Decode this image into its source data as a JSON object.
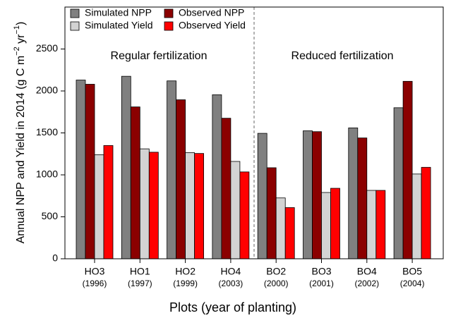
{
  "chart_data": {
    "type": "bar",
    "categories": [
      "HO3",
      "HO1",
      "HO2",
      "HO4",
      "BO2",
      "BO3",
      "BO4",
      "BO5"
    ],
    "years": [
      "(1996)",
      "(1997)",
      "(1999)",
      "(2003)",
      "(2000)",
      "(2001)",
      "(2002)",
      "(2004)"
    ],
    "series": [
      {
        "name": "Simulated NPP",
        "color": "#808080",
        "values": [
          2130,
          2175,
          2120,
          1955,
          1495,
          1525,
          1560,
          1800
        ]
      },
      {
        "name": "Observed NPP",
        "color": "#8b0000",
        "values": [
          2080,
          1810,
          1895,
          1675,
          1085,
          1515,
          1440,
          2115
        ]
      },
      {
        "name": "Simulated Yield",
        "color": "#d3d3d3",
        "values": [
          1240,
          1310,
          1265,
          1160,
          725,
          790,
          815,
          1010
        ]
      },
      {
        "name": "Observed Yield",
        "color": "#ff0000",
        "values": [
          1350,
          1270,
          1255,
          1035,
          610,
          840,
          815,
          1090
        ]
      }
    ],
    "ylim": [
      0,
      3000
    ],
    "yticks": [
      0,
      500,
      1000,
      1500,
      2000,
      2500
    ],
    "xlabel": "Plots (year of planting)",
    "ylabel": [
      "Annual NPP and Yield in 2014 (g C m",
      "−2",
      " yr",
      "−1",
      ")"
    ],
    "annotations": [
      "Regular fertilization",
      "Reduced fertilization"
    ],
    "legend": "top-left"
  }
}
